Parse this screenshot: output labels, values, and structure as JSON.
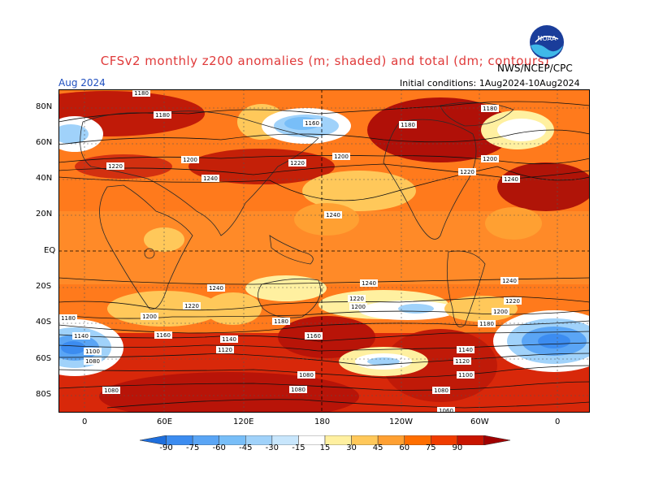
{
  "title": "CFSv2 monthly z200 anomalies (m; shaded) and total (dm; contours)",
  "agency": "NWS/NCEP/CPC",
  "month": "Aug 2024",
  "init": "Initial conditions: 1Aug2024-10Aug2024",
  "logo": "NOAA",
  "lat_ticks": [
    "80N",
    "60N",
    "40N",
    "20N",
    "EQ",
    "20S",
    "40S",
    "60S",
    "80S"
  ],
  "lon_ticks": [
    "0",
    "60E",
    "120E",
    "180",
    "120W",
    "60W",
    "0"
  ],
  "colorbar": {
    "labels": [
      "-90",
      "-75",
      "-60",
      "-45",
      "-30",
      "-15",
      "15",
      "30",
      "45",
      "60",
      "75",
      "90"
    ],
    "colors": [
      "#1e6edc",
      "#3c8cf0",
      "#5aa5f5",
      "#78bef8",
      "#a0d2fa",
      "#c8e6fc",
      "#ffffff",
      "#fff0a0",
      "#ffc85a",
      "#ffa032",
      "#ff6e00",
      "#f03c00",
      "#c81400",
      "#a00000"
    ]
  },
  "contour_labels": [
    {
      "t": "1180"
    },
    {
      "t": "1180"
    },
    {
      "t": "1160"
    },
    {
      "t": "1180"
    },
    {
      "t": "1180"
    },
    {
      "t": "1220"
    },
    {
      "t": "1200"
    },
    {
      "t": "1220"
    },
    {
      "t": "1200"
    },
    {
      "t": "1240"
    },
    {
      "t": "1200"
    },
    {
      "t": "1220"
    },
    {
      "t": "1240"
    },
    {
      "t": "1240"
    },
    {
      "t": "1240"
    },
    {
      "t": "1240"
    },
    {
      "t": "1240"
    },
    {
      "t": "1220"
    },
    {
      "t": "1220"
    },
    {
      "t": "1200"
    },
    {
      "t": "1220"
    },
    {
      "t": "1200"
    },
    {
      "t": "1200"
    },
    {
      "t": "1180"
    },
    {
      "t": "1180"
    },
    {
      "t": "1180"
    },
    {
      "t": "1140"
    },
    {
      "t": "1160"
    },
    {
      "t": "1140"
    },
    {
      "t": "1160"
    },
    {
      "t": "1100"
    },
    {
      "t": "1120"
    },
    {
      "t": "1140"
    },
    {
      "t": "1080"
    },
    {
      "t": "1120"
    },
    {
      "t": "1080"
    },
    {
      "t": "1100"
    },
    {
      "t": "1080"
    },
    {
      "t": "1080"
    },
    {
      "t": "1080"
    },
    {
      "t": "1060"
    }
  ]
}
